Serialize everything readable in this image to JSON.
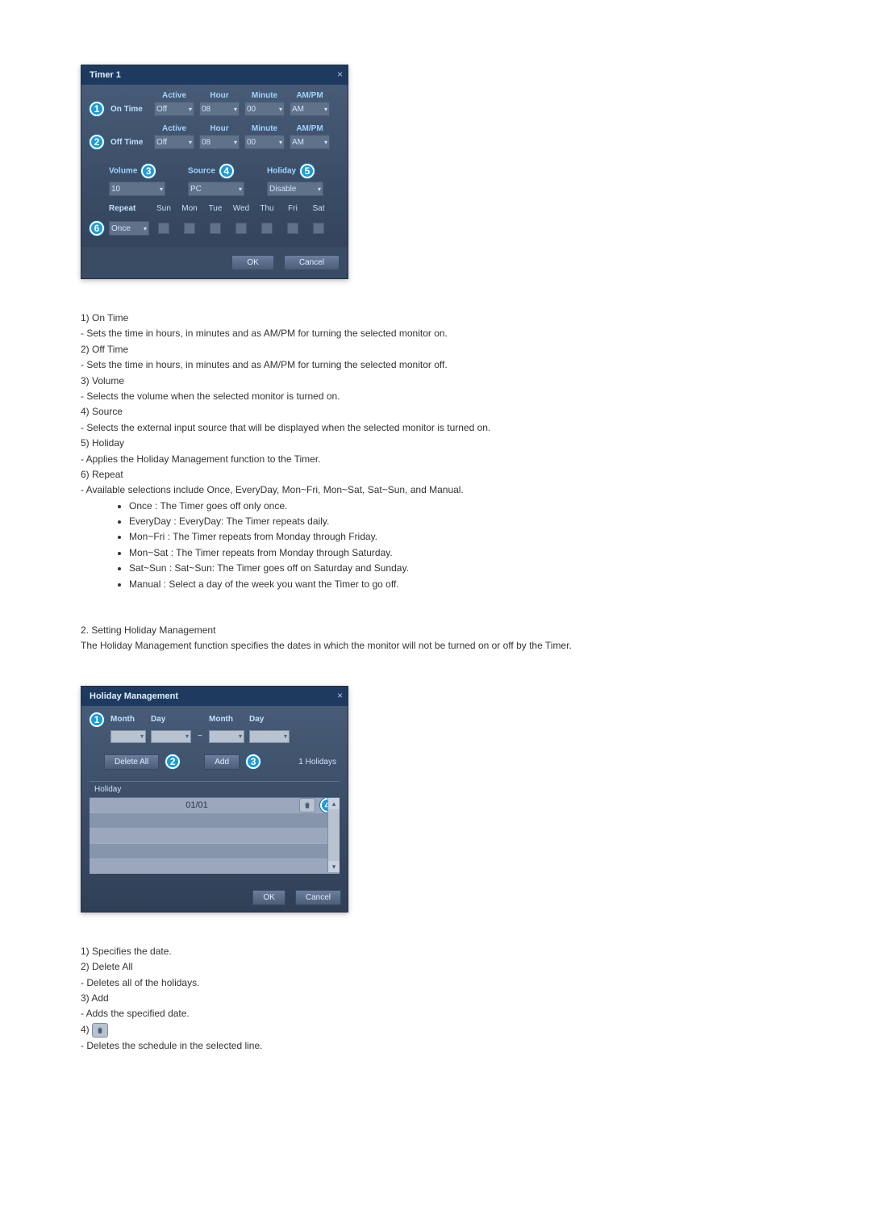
{
  "timerDialog": {
    "title": "Timer 1",
    "headers": {
      "active": "Active",
      "hour": "Hour",
      "minute": "Minute",
      "ampm": "AM/PM"
    },
    "onTime": {
      "label": "On Time",
      "active": "Off",
      "hour": "08",
      "minute": "00",
      "ampm": "AM",
      "marker": "1"
    },
    "offTime": {
      "label": "Off Time",
      "active": "Off",
      "hour": "08",
      "minute": "00",
      "ampm": "AM",
      "marker": "2"
    },
    "volume": {
      "label": "Volume",
      "value": "10",
      "marker": "3"
    },
    "source": {
      "label": "Source",
      "value": "PC",
      "marker": "4"
    },
    "holiday": {
      "label": "Holiday",
      "value": "Disable",
      "marker": "5"
    },
    "repeat": {
      "label": "Repeat",
      "value": "Once",
      "marker": "6",
      "days": [
        "Sun",
        "Mon",
        "Tue",
        "Wed",
        "Thu",
        "Fri",
        "Sat"
      ]
    },
    "ok": "OK",
    "cancel": "Cancel"
  },
  "descTimer": {
    "items": [
      {
        "num": "1)",
        "title": "On Time",
        "lines": [
          "- Sets the time in hours, in minutes and as AM/PM for turning the selected monitor on."
        ]
      },
      {
        "num": "2)",
        "title": "Off Time",
        "lines": [
          "- Sets the time in hours, in minutes and as AM/PM for turning the selected monitor off."
        ]
      },
      {
        "num": "3)",
        "title": "Volume",
        "lines": [
          "- Selects the volume when the selected monitor is turned on."
        ]
      },
      {
        "num": "4)",
        "title": "Source",
        "lines": [
          "- Selects the external input source that will be displayed when the selected monitor is turned on."
        ]
      },
      {
        "num": "5)",
        "title": "Holiday",
        "lines": [
          "- Applies the Holiday Management function to the Timer."
        ]
      },
      {
        "num": "6)",
        "title": "Repeat",
        "lines": [
          "- Available selections include Once, EveryDay, Mon~Fri, Mon~Sat, Sat~Sun, and Manual."
        ],
        "bullets": [
          "Once : The Timer goes off only once.",
          "EveryDay : EveryDay: The Timer repeats daily.",
          "Mon~Fri : The Timer repeats from Monday through Friday.",
          "Mon~Sat : The Timer repeats from Monday through Saturday.",
          "Sat~Sun : Sat~Sun: The Timer goes off on Saturday and Sunday.",
          "Manual : Select a day of the week you want the Timer to go off."
        ]
      }
    ]
  },
  "holidaySection": {
    "heading": "2.  Setting Holiday Management",
    "text": "The Holiday Management function specifies the dates in which the monitor will not be turned on or off by the Timer."
  },
  "holidayDialog": {
    "title": "Holiday Management",
    "month": "Month",
    "day": "Day",
    "tilde": "~",
    "deleteAll": "Delete All",
    "add": "Add",
    "count": "1 Holidays",
    "tableHeader": "Holiday",
    "row1": "01/01",
    "ok": "OK",
    "cancel": "Cancel",
    "markers": {
      "date": "1",
      "deleteAll": "2",
      "add": "3",
      "trash": "4"
    }
  },
  "descHoliday": {
    "items": [
      {
        "num": "1)",
        "title": "Specifies the date.",
        "lines": []
      },
      {
        "num": "2)",
        "title": "Delete All",
        "lines": [
          "- Deletes all of the holidays."
        ]
      },
      {
        "num": "3)",
        "title": "Add",
        "lines": [
          "- Adds the specified date."
        ]
      },
      {
        "num": "4)",
        "title": "__TRASH__",
        "lines": [
          "- Deletes the schedule in the selected line."
        ]
      }
    ]
  }
}
